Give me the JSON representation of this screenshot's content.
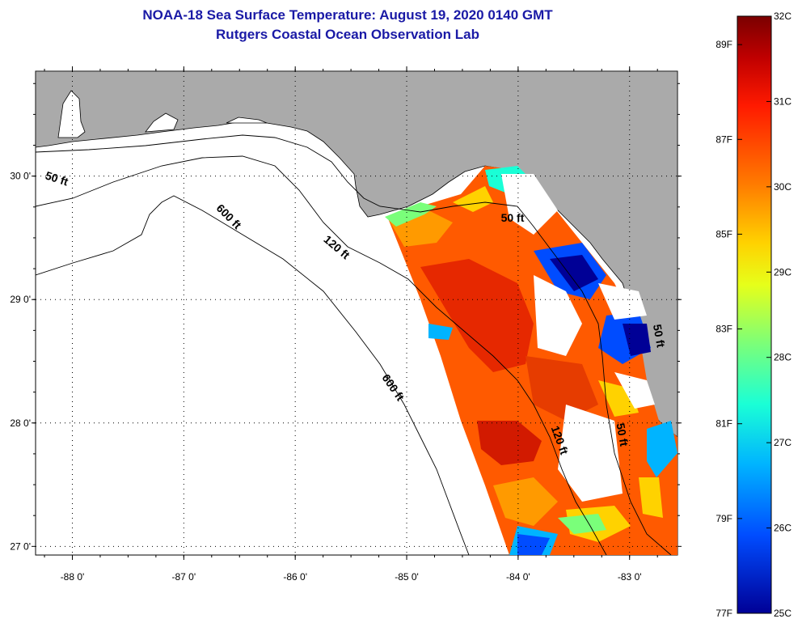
{
  "title": {
    "line1": "NOAA-18 Sea Surface Temperature:  August 19, 2020 0140 GMT",
    "line2": "Rutgers Coastal Ocean Observation Lab"
  },
  "map": {
    "lon_range": [
      -88.33,
      -82.57
    ],
    "lat_range": [
      26.93,
      30.85
    ],
    "lat_ticks": [
      {
        "value": 30,
        "label": "30 0'"
      },
      {
        "value": 29,
        "label": "29 0'"
      },
      {
        "value": 28,
        "label": "28 0'"
      },
      {
        "value": 27,
        "label": "27 0'"
      }
    ],
    "lon_ticks": [
      {
        "value": -88,
        "label": "-88 0'"
      },
      {
        "value": -87,
        "label": "-87 0'"
      },
      {
        "value": -86,
        "label": "-86 0'"
      },
      {
        "value": -85,
        "label": "-85 0'"
      },
      {
        "value": -84,
        "label": "-84 0'"
      },
      {
        "value": -83,
        "label": "-83 0'"
      }
    ],
    "contour_labels": [
      {
        "text": "50 ft",
        "lon": -88.15,
        "lat": 29.95,
        "angle": 18
      },
      {
        "text": "600 ft",
        "lon": -86.62,
        "lat": 29.65,
        "angle": 45
      },
      {
        "text": "120 ft",
        "lon": -85.65,
        "lat": 29.4,
        "angle": 40
      },
      {
        "text": "50 ft",
        "lon": -84.05,
        "lat": 29.63,
        "angle": 0
      },
      {
        "text": "600 ft",
        "lon": -85.15,
        "lat": 28.27,
        "angle": 55
      },
      {
        "text": "120 ft",
        "lon": -83.66,
        "lat": 27.85,
        "angle": 70
      },
      {
        "text": "50 ft",
        "lon": -83.1,
        "lat": 27.9,
        "angle": 80
      },
      {
        "text": "50 ft",
        "lon": -82.77,
        "lat": 28.7,
        "angle": 80
      }
    ]
  },
  "colorbar": {
    "min_c": 25,
    "max_c": 32,
    "celsius_labels": [
      {
        "value": 32,
        "label": "32C"
      },
      {
        "value": 31,
        "label": "31C"
      },
      {
        "value": 30,
        "label": "30C"
      },
      {
        "value": 29,
        "label": "29C"
      },
      {
        "value": 28,
        "label": "28C"
      },
      {
        "value": 27,
        "label": "27C"
      },
      {
        "value": 26,
        "label": "26C"
      },
      {
        "value": 25,
        "label": "25C"
      }
    ],
    "fahrenheit_labels": [
      {
        "value": 89,
        "label": "89F"
      },
      {
        "value": 87,
        "label": "87F"
      },
      {
        "value": 85,
        "label": "85F"
      },
      {
        "value": 83,
        "label": "83F"
      },
      {
        "value": 81,
        "label": "81F"
      },
      {
        "value": 79,
        "label": "79F"
      },
      {
        "value": 77,
        "label": "77F"
      }
    ]
  },
  "colors": {
    "land": "#aaaaaa",
    "title": "#1a1aa6",
    "cloud": "#ffffff"
  }
}
